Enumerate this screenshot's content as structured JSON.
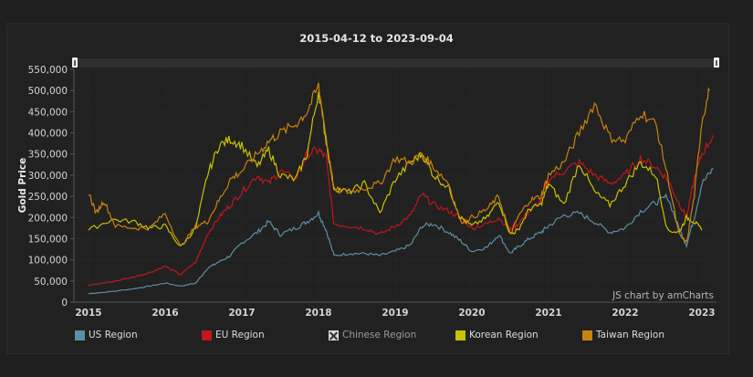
{
  "title": "2015-04-12 to 2023-09-04",
  "credit": "JS chart by amCharts",
  "colors": {
    "us": "#5b8fa6",
    "eu": "#c0171b",
    "chinese": "#d8d8d8",
    "korean": "#c9c100",
    "taiwan": "#c8830f",
    "background": "#212121",
    "grid": "#2f2f2f"
  },
  "legend": [
    {
      "label": "US Region",
      "color": "#5b8fa6",
      "enabled": true
    },
    {
      "label": "EU Region",
      "color": "#c0171b",
      "enabled": true
    },
    {
      "label": "Chinese Region",
      "color": "#d8d8d8",
      "enabled": false
    },
    {
      "label": "Korean Region",
      "color": "#c9c100",
      "enabled": true
    },
    {
      "label": "Taiwan Region",
      "color": "#c8830f",
      "enabled": true
    }
  ],
  "chart_data": {
    "type": "line",
    "title": "2015-04-12 to 2023-09-04",
    "xlabel": "",
    "ylabel": "Gold Price",
    "ylim": [
      0,
      550000
    ],
    "yticks": [
      0,
      50000,
      100000,
      150000,
      200000,
      250000,
      300000,
      350000,
      400000,
      450000,
      500000,
      550000
    ],
    "ytick_labels": [
      "0",
      "50,000",
      "100,000",
      "150,000",
      "200,000",
      "250,000",
      "300,000",
      "350,000",
      "400,000",
      "450,000",
      "500,000",
      "550,000"
    ],
    "xticks": [
      "2015",
      "2016",
      "2017",
      "2018",
      "2019",
      "2020",
      "2021",
      "2022",
      "2023"
    ],
    "grid": true,
    "legend_position": "bottom",
    "series": [
      {
        "name": "US Region",
        "color": "#5b8fa6",
        "x": [
          2015.0,
          2015.3,
          2015.6,
          2015.8,
          2016.0,
          2016.2,
          2016.4,
          2016.55,
          2016.7,
          2016.85,
          2017.0,
          2017.2,
          2017.35,
          2017.5,
          2017.7,
          2017.85,
          2018.0,
          2018.1,
          2018.2,
          2018.4,
          2018.6,
          2018.8,
          2019.0,
          2019.2,
          2019.35,
          2019.5,
          2019.7,
          2019.85,
          2020.0,
          2020.2,
          2020.35,
          2020.5,
          2020.6,
          2020.75,
          2020.9,
          2021.0,
          2021.2,
          2021.4,
          2021.6,
          2021.8,
          2022.0,
          2022.2,
          2022.4,
          2022.55,
          2022.7,
          2022.8,
          2022.9,
          2023.0,
          2023.15
        ],
        "values": [
          20000,
          25000,
          32000,
          38000,
          45000,
          38000,
          45000,
          80000,
          95000,
          110000,
          140000,
          165000,
          190000,
          160000,
          175000,
          190000,
          210000,
          170000,
          110000,
          115000,
          115000,
          110000,
          120000,
          135000,
          180000,
          185000,
          165000,
          145000,
          120000,
          130000,
          160000,
          115000,
          130000,
          150000,
          165000,
          180000,
          205000,
          210000,
          190000,
          165000,
          175000,
          215000,
          235000,
          250000,
          175000,
          135000,
          200000,
          280000,
          315000
        ]
      },
      {
        "name": "EU Region",
        "color": "#c0171b",
        "x": [
          2015.0,
          2015.3,
          2015.6,
          2015.8,
          2016.0,
          2016.2,
          2016.4,
          2016.55,
          2016.7,
          2016.85,
          2017.0,
          2017.2,
          2017.35,
          2017.5,
          2017.7,
          2017.85,
          2018.0,
          2018.1,
          2018.2,
          2018.4,
          2018.6,
          2018.8,
          2019.0,
          2019.2,
          2019.35,
          2019.5,
          2019.7,
          2019.85,
          2020.0,
          2020.2,
          2020.35,
          2020.5,
          2020.6,
          2020.75,
          2020.9,
          2021.0,
          2021.2,
          2021.4,
          2021.6,
          2021.8,
          2022.0,
          2022.2,
          2022.4,
          2022.55,
          2022.7,
          2022.8,
          2022.9,
          2023.0,
          2023.15
        ],
        "values": [
          40000,
          48000,
          60000,
          70000,
          85000,
          65000,
          95000,
          160000,
          200000,
          230000,
          260000,
          300000,
          280000,
          310000,
          290000,
          350000,
          360000,
          340000,
          185000,
          180000,
          175000,
          160000,
          180000,
          205000,
          255000,
          230000,
          215000,
          200000,
          175000,
          185000,
          200000,
          170000,
          185000,
          215000,
          240000,
          290000,
          310000,
          330000,
          300000,
          280000,
          300000,
          340000,
          320000,
          290000,
          235000,
          200000,
          290000,
          350000,
          395000
        ]
      },
      {
        "name": "Korean Region",
        "color": "#c9c100",
        "x": [
          2015.0,
          2015.3,
          2015.6,
          2015.8,
          2016.0,
          2016.2,
          2016.4,
          2016.55,
          2016.7,
          2016.85,
          2017.0,
          2017.2,
          2017.35,
          2017.5,
          2017.7,
          2017.85,
          2018.0,
          2018.1,
          2018.2,
          2018.4,
          2018.6,
          2018.8,
          2019.0,
          2019.2,
          2019.35,
          2019.5,
          2019.7,
          2019.85,
          2020.0,
          2020.2,
          2020.35,
          2020.5,
          2020.6,
          2020.75,
          2020.9,
          2021.0,
          2021.2,
          2021.4,
          2021.6,
          2021.8,
          2022.0,
          2022.2,
          2022.4,
          2022.55,
          2022.7,
          2022.8,
          2022.9,
          2023.0
        ],
        "values": [
          170000,
          195000,
          190000,
          175000,
          180000,
          130000,
          175000,
          300000,
          370000,
          385000,
          370000,
          320000,
          360000,
          300000,
          290000,
          350000,
          500000,
          380000,
          270000,
          260000,
          280000,
          210000,
          290000,
          330000,
          350000,
          300000,
          270000,
          200000,
          180000,
          200000,
          240000,
          160000,
          170000,
          220000,
          230000,
          280000,
          230000,
          330000,
          260000,
          230000,
          280000,
          330000,
          300000,
          170000,
          165000,
          200000,
          190000,
          170000
        ]
      },
      {
        "name": "Taiwan Region",
        "color": "#c8830f",
        "x": [
          2015.0,
          2015.1,
          2015.2,
          2015.35,
          2015.6,
          2015.8,
          2016.0,
          2016.2,
          2016.4,
          2016.55,
          2016.7,
          2016.85,
          2017.0,
          2017.2,
          2017.35,
          2017.5,
          2017.7,
          2017.85,
          2018.0,
          2018.1,
          2018.2,
          2018.4,
          2018.6,
          2018.8,
          2019.0,
          2019.2,
          2019.35,
          2019.5,
          2019.7,
          2019.85,
          2020.0,
          2020.2,
          2020.35,
          2020.5,
          2020.6,
          2020.75,
          2020.9,
          2021.0,
          2021.2,
          2021.4,
          2021.6,
          2021.8,
          2022.0,
          2022.2,
          2022.4,
          2022.55,
          2022.7,
          2022.8,
          2022.9,
          2023.0,
          2023.1
        ],
        "values": [
          260000,
          210000,
          240000,
          180000,
          175000,
          175000,
          210000,
          130000,
          180000,
          190000,
          240000,
          290000,
          310000,
          350000,
          380000,
          400000,
          420000,
          450000,
          510000,
          390000,
          265000,
          260000,
          270000,
          280000,
          340000,
          330000,
          350000,
          320000,
          280000,
          190000,
          200000,
          220000,
          250000,
          160000,
          200000,
          240000,
          250000,
          300000,
          330000,
          400000,
          470000,
          390000,
          380000,
          450000,
          420000,
          300000,
          160000,
          140000,
          250000,
          430000,
          500000
        ]
      }
    ]
  }
}
